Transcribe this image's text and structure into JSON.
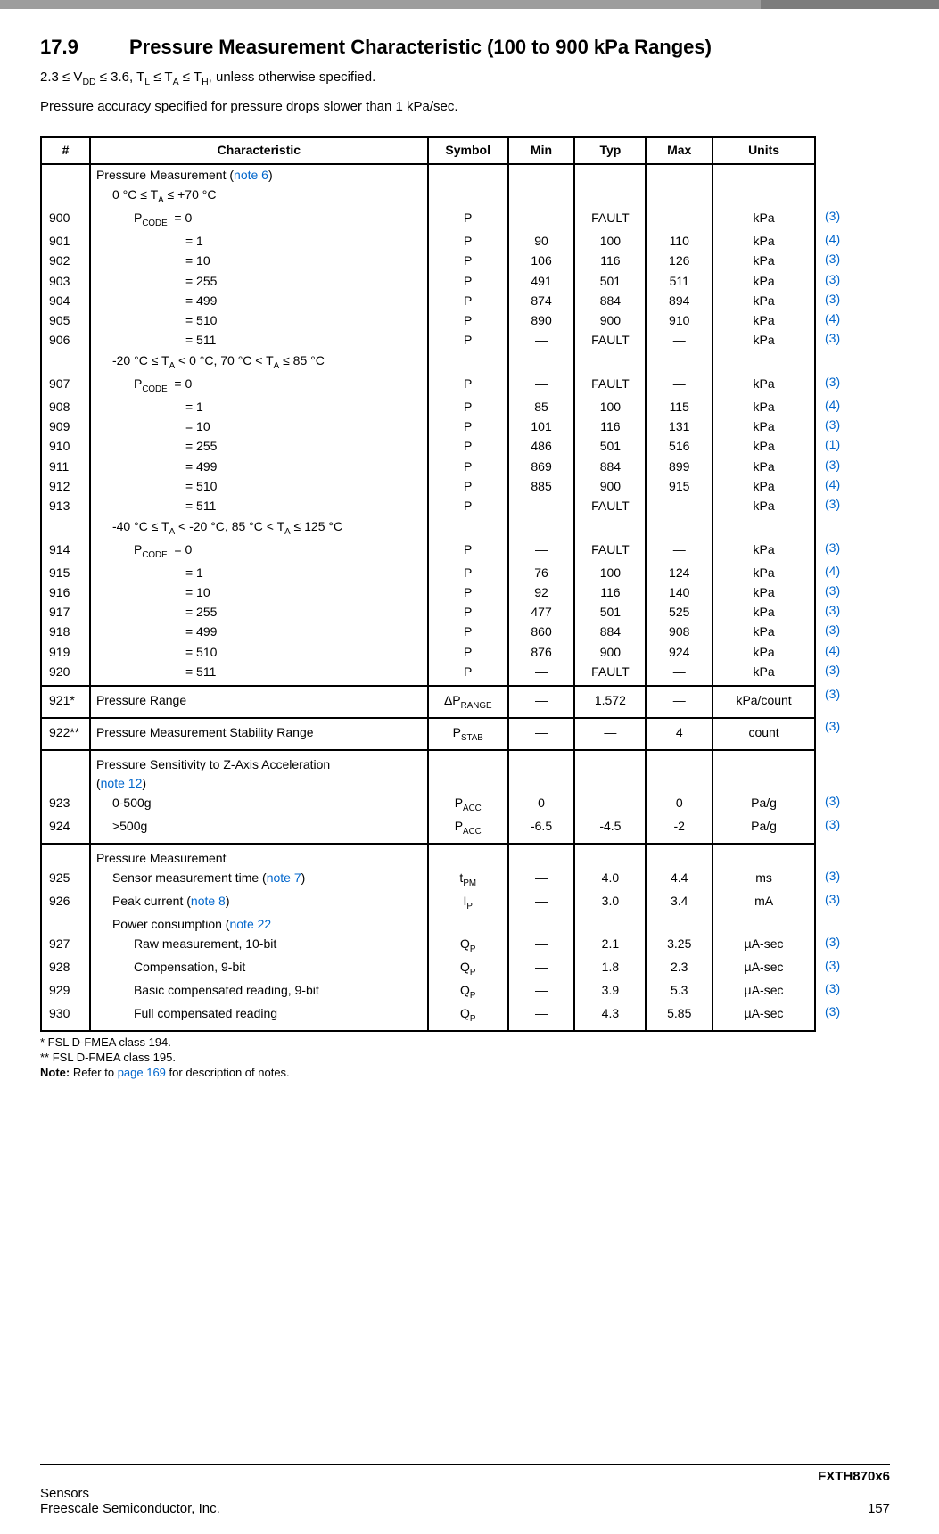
{
  "header": {
    "section_number": "17.9",
    "section_title": "Pressure Measurement Characteristic (100 to 900 kPa Ranges)",
    "cond_line": "2.3 ≤ V<sub>DD</sub> ≤ 3.6, T<sub>L</sub> ≤ T<sub>A</sub> ≤ T<sub>H</sub>, unless otherwise specified.",
    "acc_line": "Pressure accuracy specified for pressure drops slower than 1 kPa/sec."
  },
  "cols": {
    "num": "#",
    "char": "Characteristic",
    "sym": "Symbol",
    "min": "Min",
    "typ": "Typ",
    "max": "Max",
    "units": "Units"
  },
  "section_headers": {
    "pm_note6": "Pressure Measurement (<span class=\"blue\">note 6</span>)",
    "pm_plain": "Pressure Measurement",
    "pacc": "Pressure Sensitivity to Z-Axis Acceleration<br>(<span class=\"blue\">note 12</span>)",
    "range1": "0 °C ≤ T<sub>A</sub> ≤ +70 °C",
    "range2": "-20 °C ≤ T<sub>A</sub> &lt; 0 °C, 70 °C &lt; T<sub>A</sub> ≤ 85 °C",
    "range3": "-40 °C ≤ T<sub>A</sub> &lt; -20 °C, 85 °C &lt; T<sub>A</sub> ≤ 125 °C",
    "pcode": "P<sub>CODE</sub>"
  },
  "rows": [
    {
      "n": "900",
      "c": "= 0",
      "s": "P",
      "min": "—",
      "typ": "FAULT",
      "max": "—",
      "u": "kPa",
      "ref": "(3)",
      "first": true
    },
    {
      "n": "901",
      "c": "= 1",
      "s": "P",
      "min": "90",
      "typ": "100",
      "max": "110",
      "u": "kPa",
      "ref": "(4)"
    },
    {
      "n": "902",
      "c": "= 10",
      "s": "P",
      "min": "106",
      "typ": "116",
      "max": "126",
      "u": "kPa",
      "ref": "(3)"
    },
    {
      "n": "903",
      "c": "= 255",
      "s": "P",
      "min": "491",
      "typ": "501",
      "max": "511",
      "u": "kPa",
      "ref": "(3)"
    },
    {
      "n": "904",
      "c": "= 499",
      "s": "P",
      "min": "874",
      "typ": "884",
      "max": "894",
      "u": "kPa",
      "ref": "(3)"
    },
    {
      "n": "905",
      "c": "= 510",
      "s": "P",
      "min": "890",
      "typ": "900",
      "max": "910",
      "u": "kPa",
      "ref": "(4)"
    },
    {
      "n": "906",
      "c": "= 511",
      "s": "P",
      "min": "—",
      "typ": "FAULT",
      "max": "—",
      "u": "kPa",
      "ref": "(3)"
    }
  ],
  "rows2": [
    {
      "n": "907",
      "c": "= 0",
      "s": "P",
      "min": "—",
      "typ": "FAULT",
      "max": "—",
      "u": "kPa",
      "ref": "(3)",
      "first": true
    },
    {
      "n": "908",
      "c": "= 1",
      "s": "P",
      "min": "85",
      "typ": "100",
      "max": "115",
      "u": "kPa",
      "ref": "(4)"
    },
    {
      "n": "909",
      "c": "= 10",
      "s": "P",
      "min": "101",
      "typ": "116",
      "max": "131",
      "u": "kPa",
      "ref": "(3)"
    },
    {
      "n": "910",
      "c": "= 255",
      "s": "P",
      "min": "486",
      "typ": "501",
      "max": "516",
      "u": "kPa",
      "ref": "(1)"
    },
    {
      "n": "911",
      "c": "= 499",
      "s": "P",
      "min": "869",
      "typ": "884",
      "max": "899",
      "u": "kPa",
      "ref": "(3)"
    },
    {
      "n": "912",
      "c": "= 510",
      "s": "P",
      "min": "885",
      "typ": "900",
      "max": "915",
      "u": "kPa",
      "ref": "(4)"
    },
    {
      "n": "913",
      "c": "= 511",
      "s": "P",
      "min": "—",
      "typ": "FAULT",
      "max": "—",
      "u": "kPa",
      "ref": "(3)"
    }
  ],
  "rows3": [
    {
      "n": "914",
      "c": "= 0",
      "s": "P",
      "min": "—",
      "typ": "FAULT",
      "max": "—",
      "u": "kPa",
      "ref": "(3)",
      "first": true
    },
    {
      "n": "915",
      "c": "= 1",
      "s": "P",
      "min": "76",
      "typ": "100",
      "max": "124",
      "u": "kPa",
      "ref": "(4)"
    },
    {
      "n": "916",
      "c": "= 10",
      "s": "P",
      "min": "92",
      "typ": "116",
      "max": "140",
      "u": "kPa",
      "ref": "(3)"
    },
    {
      "n": "917",
      "c": "= 255",
      "s": "P",
      "min": "477",
      "typ": "501",
      "max": "525",
      "u": "kPa",
      "ref": "(3)"
    },
    {
      "n": "918",
      "c": "= 499",
      "s": "P",
      "min": "860",
      "typ": "884",
      "max": "908",
      "u": "kPa",
      "ref": "(3)"
    },
    {
      "n": "919",
      "c": "= 510",
      "s": "P",
      "min": "876",
      "typ": "900",
      "max": "924",
      "u": "kPa",
      "ref": "(4)"
    },
    {
      "n": "920",
      "c": "= 511",
      "s": "P",
      "min": "—",
      "typ": "FAULT",
      "max": "—",
      "u": "kPa",
      "ref": "(3)"
    }
  ],
  "row921": {
    "n": "921*",
    "c": "Pressure Range",
    "s": "ΔP<sub>RANGE</sub>",
    "min": "—",
    "typ": "1.572",
    "max": "—",
    "u": "kPa/count",
    "ref": "(3)"
  },
  "row922": {
    "n": "922**",
    "c": "Pressure Measurement Stability Range",
    "s": "P<sub>STAB</sub>",
    "min": "—",
    "typ": "—",
    "max": "4",
    "u": "count",
    "ref": "(3)"
  },
  "rows_pacc": [
    {
      "n": "923",
      "c": "0-500g",
      "s": "P<sub>ACC</sub>",
      "min": "0",
      "typ": "—",
      "max": "0",
      "u": "Pa/g",
      "ref": "(3)"
    },
    {
      "n": "924",
      "c": ">500g",
      "s": "P<sub>ACC</sub>",
      "min": "-6.5",
      "typ": "-4.5",
      "max": "-2",
      "u": "Pa/g",
      "ref": "(3)"
    }
  ],
  "rows_pm2": [
    {
      "n": "925",
      "c": "Sensor measurement time (<span class=\"blue\">note 7</span>)",
      "s": "t<sub>PM</sub>",
      "min": "—",
      "typ": "4.0",
      "max": "4.4",
      "u": "ms",
      "ref": "(3)",
      "ind": "ind1"
    },
    {
      "n": "926",
      "c": "Peak current (<span class=\"blue\">note 8</span>)",
      "s": "I<sub>P</sub>",
      "min": "—",
      "typ": "3.0",
      "max": "3.4",
      "u": "mA",
      "ref": "(3)",
      "ind": "ind1"
    },
    {
      "n": "",
      "c": "Power consumption (<span class=\"blue\">note 22</span>",
      "s": "",
      "min": "",
      "typ": "",
      "max": "",
      "u": "",
      "ref": "",
      "ind": "ind1",
      "noref": true
    },
    {
      "n": "927",
      "c": "Raw measurement, 10-bit",
      "s": "Q<sub>P</sub>",
      "min": "—",
      "typ": "2.1",
      "max": "3.25",
      "u": "µA-sec",
      "ref": "(3)",
      "ind": "ind2"
    },
    {
      "n": "928",
      "c": "Compensation, 9-bit",
      "s": "Q<sub>P</sub>",
      "min": "—",
      "typ": "1.8",
      "max": "2.3",
      "u": "µA-sec",
      "ref": "(3)",
      "ind": "ind2"
    },
    {
      "n": "929",
      "c": "Basic compensated reading, 9-bit",
      "s": "Q<sub>P</sub>",
      "min": "—",
      "typ": "3.9",
      "max": "5.3",
      "u": "µA-sec",
      "ref": "(3)",
      "ind": "ind2"
    },
    {
      "n": "930",
      "c": "Full compensated reading",
      "s": "Q<sub>P</sub>",
      "min": "—",
      "typ": "4.3",
      "max": "5.85",
      "u": "µA-sec",
      "ref": "(3)",
      "ind": "ind2",
      "last": true
    }
  ],
  "footnotes": {
    "f1": "*  FSL D-FMEA class 194.",
    "f2": "** FSL D-FMEA class 195.",
    "f3": "<b>Note:</b>  Refer to <span class=\"blue\">page 169</span> for description of notes."
  },
  "footer": {
    "product": "FXTH870x6",
    "left1": "Sensors",
    "left2": "Freescale Semiconductor, Inc.",
    "page": "157"
  }
}
